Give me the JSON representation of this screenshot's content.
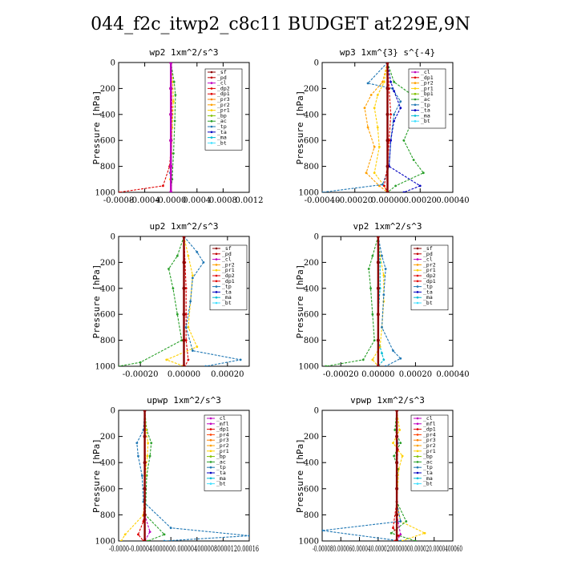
{
  "title": "044_f2c_itwp2_c8c11  BUDGET at229E,9N",
  "chart_data": [
    {
      "type": "line",
      "title": "wp2  1xm^2/s^3",
      "ylabel": "Pressure [hPa]",
      "xlim": [
        -0.0008,
        0.0012
      ],
      "ylim": [
        0,
        1000
      ],
      "y_reversed": true,
      "xticks": [
        "-0.0008",
        "-0.0004",
        "-0.0000",
        "0.0004",
        "0.0008",
        "0.0012"
      ],
      "xtick_values": [
        -0.0008,
        -0.0004,
        0.0,
        0.0004,
        0.0008,
        0.0012
      ],
      "yticks": [
        0,
        200,
        400,
        600,
        800,
        1000
      ],
      "legend": [
        "_sf",
        "_pd",
        "_cl",
        "_dp2",
        "_dp1",
        "_pr3",
        "_pr2",
        "_pr1",
        "_bp",
        "_ac",
        "_tp",
        "_ta",
        "_ma",
        "_bt"
      ],
      "series": [
        {
          "name": "_sf",
          "color": "#8b0000",
          "x": [
            0,
            0,
            0,
            0,
            0,
            0
          ],
          "y": [
            0,
            200,
            400,
            600,
            800,
            1000
          ]
        },
        {
          "name": "_cl",
          "color": "#c000c0",
          "x": [
            0,
            0,
            0,
            0,
            0,
            0
          ],
          "y": [
            0,
            200,
            400,
            600,
            800,
            1000
          ]
        },
        {
          "name": "_dp1",
          "color": "#e00000",
          "x": [
            0,
            1e-05,
            2e-05,
            1e-05,
            -2e-05,
            -0.00012,
            -0.0008
          ],
          "y": [
            0,
            200,
            400,
            600,
            800,
            950,
            1000
          ]
        },
        {
          "name": "_pr2",
          "color": "#ffd000",
          "x": [
            0,
            3e-05,
            4e-05,
            2e-05,
            1e-05,
            -1e-05,
            0
          ],
          "y": [
            0,
            150,
            300,
            500,
            700,
            900,
            1000
          ]
        },
        {
          "name": "_ac",
          "color": "#2aa02a",
          "x": [
            0,
            5e-05,
            7e-05,
            6e-05,
            4e-05,
            2e-05,
            0
          ],
          "y": [
            0,
            150,
            250,
            450,
            700,
            900,
            1000
          ]
        },
        {
          "name": "_tp",
          "color": "#1f77b4",
          "x": [
            0,
            0,
            1e-05,
            0,
            -1e-05,
            0
          ],
          "y": [
            0,
            200,
            400,
            600,
            850,
            1000
          ]
        }
      ]
    },
    {
      "type": "line",
      "title": "wp3  1xm^{3} s^{-4}",
      "ylabel": "Pressure [hPa]",
      "xlim": [
        -0.0004,
        0.0004
      ],
      "ylim": [
        0,
        1000
      ],
      "y_reversed": true,
      "xticks": [
        "-0.00040",
        "-0.00020",
        "0.00000",
        "0.00020",
        "0.00040"
      ],
      "xtick_values": [
        -0.0004,
        -0.0002,
        0.0,
        0.0002,
        0.0004
      ],
      "yticks": [
        0,
        200,
        400,
        600,
        800,
        1000
      ],
      "legend": [
        "_cl",
        "_dp1",
        "_pr2",
        "_pr1",
        "_bp1",
        "_ac",
        "_tp",
        "_ta",
        "_ma",
        "_bt"
      ],
      "series": [
        {
          "name": "_cl",
          "color": "#8b0000",
          "x": [
            0,
            0,
            0,
            0,
            0,
            0
          ],
          "y": [
            0,
            200,
            400,
            600,
            800,
            1000
          ]
        },
        {
          "name": "_pr2",
          "color": "#ffa000",
          "x": [
            0,
            -3e-05,
            -0.0001,
            -0.00014,
            -0.00012,
            -8e-05,
            -0.00013,
            -5e-05,
            0
          ],
          "y": [
            0,
            150,
            250,
            350,
            500,
            650,
            850,
            950,
            1000
          ]
        },
        {
          "name": "_pr1",
          "color": "#ffd000",
          "x": [
            0,
            -2e-05,
            -6e-05,
            -8e-05,
            -6e-05,
            -5e-05,
            -8e-05,
            -2e-05,
            0
          ],
          "y": [
            0,
            150,
            250,
            350,
            500,
            650,
            850,
            950,
            1000
          ]
        },
        {
          "name": "_ac",
          "color": "#2aa02a",
          "x": [
            0,
            4e-05,
            0.00015,
            0.00025,
            0.00015,
            0.0001,
            0.00016,
            0.00022,
            5e-05,
            0
          ],
          "y": [
            0,
            150,
            250,
            350,
            450,
            600,
            750,
            850,
            950,
            1000
          ]
        },
        {
          "name": "_tp",
          "color": "#1f77b4",
          "x": [
            0,
            -0.00012,
            3e-05,
            8e-05,
            4e-05,
            2e-05,
            1e-05,
            -3e-05,
            -0.0004
          ],
          "y": [
            0,
            160,
            200,
            300,
            400,
            600,
            800,
            940,
            1000
          ]
        },
        {
          "name": "_ta",
          "color": "#0000c0",
          "x": [
            0,
            2e-05,
            4e-05,
            8e-05,
            4e-05,
            2e-05,
            1e-05,
            0.0002,
            0.0001
          ],
          "y": [
            0,
            150,
            220,
            350,
            450,
            600,
            800,
            950,
            1000
          ]
        },
        {
          "name": "_dp1",
          "color": "#e00000",
          "x": [
            0,
            1e-05,
            2e-05,
            1e-05,
            0,
            -2e-05,
            0
          ],
          "y": [
            0,
            200,
            400,
            600,
            800,
            950,
            1000
          ]
        }
      ]
    },
    {
      "type": "line",
      "title": "up2  1xm^2/s^3",
      "ylabel": "Pressure [hPa]",
      "xlim": [
        -0.0003,
        0.0003
      ],
      "ylim": [
        0,
        1000
      ],
      "y_reversed": true,
      "xticks": [
        "-0.00020",
        "0.00000",
        "0.00020"
      ],
      "xtick_values": [
        -0.0002,
        0.0,
        0.0002
      ],
      "yticks": [
        0,
        200,
        400,
        600,
        800,
        1000
      ],
      "legend": [
        "_sf",
        "_pd",
        "_cl",
        "_pr2",
        "_pr1",
        "_dp2",
        "_dp1",
        "_tp",
        "_ta",
        "_ma",
        "_bt"
      ],
      "series": [
        {
          "name": "_sf",
          "color": "#8b0000",
          "x": [
            0,
            0,
            0,
            0,
            0,
            0
          ],
          "y": [
            0,
            200,
            400,
            600,
            800,
            1000
          ]
        },
        {
          "name": "_pd",
          "color": "#e00000",
          "x": [
            0,
            5e-06,
            1e-05,
            1e-05,
            1e-05,
            2e-05,
            5e-06
          ],
          "y": [
            0,
            200,
            400,
            600,
            800,
            950,
            1000
          ]
        },
        {
          "name": "_pr1",
          "color": "#ffd000",
          "x": [
            0,
            2e-05,
            4e-05,
            3e-05,
            2e-05,
            6e-05,
            -8e-05,
            0
          ],
          "y": [
            0,
            150,
            300,
            500,
            700,
            850,
            950,
            1000
          ]
        },
        {
          "name": "_dp2",
          "color": "#2aa02a",
          "x": [
            0,
            -3e-05,
            -7e-05,
            -5e-05,
            -3e-05,
            -1e-05,
            -0.0002,
            -0.0003
          ],
          "y": [
            0,
            150,
            250,
            400,
            600,
            800,
            970,
            1000
          ]
        },
        {
          "name": "_tp",
          "color": "#1f77b4",
          "x": [
            0,
            6e-05,
            9e-05,
            4e-05,
            3e-05,
            1e-05,
            4e-05,
            0.00026,
            0.0001
          ],
          "y": [
            0,
            120,
            200,
            320,
            500,
            700,
            880,
            950,
            1000
          ]
        }
      ]
    },
    {
      "type": "line",
      "title": "vp2  1xm^2/s^3",
      "ylabel": "Pressure [hPa]",
      "xlim": [
        -0.0003,
        0.0004
      ],
      "ylim": [
        0,
        1000
      ],
      "y_reversed": true,
      "xticks": [
        "-0.00020",
        "0.00000",
        "0.00020",
        "0.00040"
      ],
      "xtick_values": [
        -0.0002,
        0.0,
        0.0002,
        0.0004
      ],
      "yticks": [
        0,
        200,
        400,
        600,
        800,
        1000
      ],
      "legend": [
        "_sf",
        "_pd",
        "_cl",
        "_pr2",
        "_pr1",
        "_dp2",
        "_dp1",
        "_tp",
        "_ta",
        "_ma",
        "_bt"
      ],
      "series": [
        {
          "name": "_sf",
          "color": "#8b0000",
          "x": [
            0,
            0,
            0,
            0,
            0,
            0
          ],
          "y": [
            0,
            200,
            400,
            600,
            800,
            1000
          ]
        },
        {
          "name": "_pr1",
          "color": "#ffd000",
          "x": [
            0,
            1e-05,
            3e-05,
            3e-05,
            2e-05,
            1e-05,
            -3e-05,
            0
          ],
          "y": [
            0,
            150,
            300,
            500,
            700,
            850,
            950,
            1000
          ]
        },
        {
          "name": "_dp2",
          "color": "#2aa02a",
          "x": [
            0,
            -3e-05,
            -5e-05,
            -4e-05,
            -3e-05,
            -2e-05,
            -8e-05,
            -0.00028
          ],
          "y": [
            0,
            150,
            250,
            400,
            600,
            800,
            950,
            1000
          ]
        },
        {
          "name": "_tp",
          "color": "#1f77b4",
          "x": [
            0,
            2e-05,
            4e-05,
            3e-05,
            2e-05,
            8e-05,
            0.00012,
            4e-05
          ],
          "y": [
            0,
            150,
            250,
            450,
            700,
            880,
            940,
            1000
          ]
        },
        {
          "name": "_ma",
          "color": "#00bcd4",
          "x": [
            0,
            1e-05,
            1e-05,
            0,
            0,
            2e-05,
            3e-05,
            0
          ],
          "y": [
            0,
            200,
            400,
            600,
            800,
            900,
            950,
            1000
          ]
        }
      ]
    },
    {
      "type": "line",
      "title": "upwp  1xm^2/s^3",
      "ylabel": "Pressure [hPa]",
      "xlim": [
        -4e-05,
        0.00016
      ],
      "ylim": [
        0,
        1000
      ],
      "y_reversed": true,
      "xticks": [
        "-0.00004",
        "0.00000",
        "0.00004",
        "0.00008",
        "0.00012",
        "0.00016"
      ],
      "xtick_values": [
        -4e-05,
        0.0,
        4e-05,
        8e-05,
        0.00012,
        0.00016
      ],
      "xtick_label_overlap": "-0.0000-0.000040000000.0000040000080000120.00016",
      "yticks": [
        0,
        200,
        400,
        600,
        800,
        1000
      ],
      "legend": [
        "_cl",
        "_mfl",
        "_dp1",
        "_pr4",
        "_pr3",
        "_pr2",
        "_pr1",
        "_bp",
        "_ac",
        "_tp",
        "_ta",
        "_ma",
        "_bt"
      ],
      "series": [
        {
          "name": "_cl",
          "color": "#8b0000",
          "x": [
            0,
            0,
            0,
            0,
            0,
            0
          ],
          "y": [
            0,
            200,
            400,
            600,
            800,
            1000
          ]
        },
        {
          "name": "_tp",
          "color": "#1f77b4",
          "x": [
            0,
            -2e-06,
            -1.2e-05,
            -1e-05,
            -4e-06,
            -2e-06,
            4e-05,
            0.00016,
            3e-05
          ],
          "y": [
            0,
            150,
            250,
            350,
            500,
            700,
            900,
            960,
            1000
          ]
        },
        {
          "name": "_ac",
          "color": "#2aa02a",
          "x": [
            0,
            3e-06,
            1e-05,
            8e-06,
            3e-06,
            1e-06,
            3e-05,
            5e-06
          ],
          "y": [
            0,
            150,
            250,
            350,
            500,
            800,
            950,
            1000
          ]
        },
        {
          "name": "_pr1",
          "color": "#ffd000",
          "x": [
            0,
            2e-06,
            5e-06,
            4e-06,
            1e-06,
            -2e-06,
            -3e-05,
            -3.6e-05
          ],
          "y": [
            0,
            150,
            250,
            350,
            500,
            800,
            950,
            1000
          ]
        },
        {
          "name": "_dp1",
          "color": "#e00000",
          "x": [
            0,
            0,
            1e-06,
            0,
            -2e-06,
            -1e-05,
            -2e-06
          ],
          "y": [
            0,
            200,
            400,
            600,
            850,
            950,
            1000
          ]
        },
        {
          "name": "_mfl",
          "color": "#c000c0",
          "x": [
            0,
            0,
            0,
            0,
            8e-06,
            0
          ],
          "y": [
            0,
            200,
            400,
            800,
            930,
            1000
          ]
        }
      ]
    },
    {
      "type": "line",
      "title": "vpwp  1xm^2/s^3",
      "ylabel": "Pressure [hPa]",
      "xlim": [
        -8e-05,
        6e-05
      ],
      "ylim": [
        0,
        1000
      ],
      "y_reversed": true,
      "xticks": [
        "-0.00008",
        "-0.00006",
        "-0.00004",
        "-0.00002",
        "0.00000",
        "0.00002",
        "0.00004",
        "0.00006"
      ],
      "xtick_values": [
        -8e-05,
        -6e-05,
        -4e-05,
        -2e-05,
        0.0,
        2e-05,
        4e-05,
        6e-05
      ],
      "xtick_label_overlap": "-0.000080.000060.000040.0000200000000.000020.0000400060",
      "yticks": [
        0,
        200,
        400,
        600,
        800,
        1000
      ],
      "legend": [
        "_cl",
        "_mfl",
        "_dp1",
        "_pr4",
        "_pr3",
        "_pr2",
        "_pr1",
        "_bp",
        "_ac",
        "_tp",
        "_ta",
        "_ma",
        "_bt"
      ],
      "series": [
        {
          "name": "_cl",
          "color": "#8b0000",
          "x": [
            0,
            0,
            0,
            0,
            0,
            0
          ],
          "y": [
            0,
            200,
            400,
            600,
            800,
            1000
          ]
        },
        {
          "name": "_pr1",
          "color": "#ffd000",
          "x": [
            0,
            3e-06,
            -4e-06,
            6e-06,
            2e-06,
            0,
            4e-06,
            3e-05,
            5e-06
          ],
          "y": [
            0,
            150,
            250,
            350,
            450,
            700,
            850,
            940,
            1000
          ]
        },
        {
          "name": "_ac",
          "color": "#2aa02a",
          "x": [
            0,
            -2e-06,
            4e-06,
            -3e-06,
            1e-06,
            0,
            1e-05,
            -6e-06,
            2e-05
          ],
          "y": [
            0,
            150,
            250,
            350,
            450,
            700,
            850,
            940,
            1000
          ]
        },
        {
          "name": "_tp",
          "color": "#1f77b4",
          "x": [
            0,
            0,
            1e-06,
            0,
            0,
            0,
            4e-06,
            -8e-05,
            4e-06
          ],
          "y": [
            0,
            150,
            250,
            350,
            500,
            700,
            850,
            920,
            1000
          ]
        },
        {
          "name": "_dp1",
          "color": "#e00000",
          "x": [
            0,
            0,
            1e-06,
            0,
            0,
            -4e-06,
            2e-06,
            -2e-06
          ],
          "y": [
            0,
            200,
            300,
            500,
            700,
            900,
            960,
            1000
          ]
        },
        {
          "name": "_mfl",
          "color": "#c000c0",
          "x": [
            0,
            0,
            0,
            0,
            0,
            4e-06,
            0
          ],
          "y": [
            0,
            200,
            400,
            600,
            800,
            950,
            1000
          ]
        }
      ]
    }
  ],
  "colors": {
    "_sf": "#8b0000",
    "_pd": "#c00000",
    "_cl": "#c000c0",
    "_mfl": "#c000c0",
    "_dp2": "#e00000",
    "_dp1": "#e00000",
    "_pr4": "#ff4000",
    "_pr3": "#ff8000",
    "_pr2": "#ffa000",
    "_pr1": "#ffd000",
    "_bp": "#80c000",
    "_bp1": "#80c000",
    "_ac": "#2aa02a",
    "_tp": "#1f77b4",
    "_ta": "#0000c0",
    "_ma": "#00bcd4",
    "_bt": "#40e0ff"
  }
}
